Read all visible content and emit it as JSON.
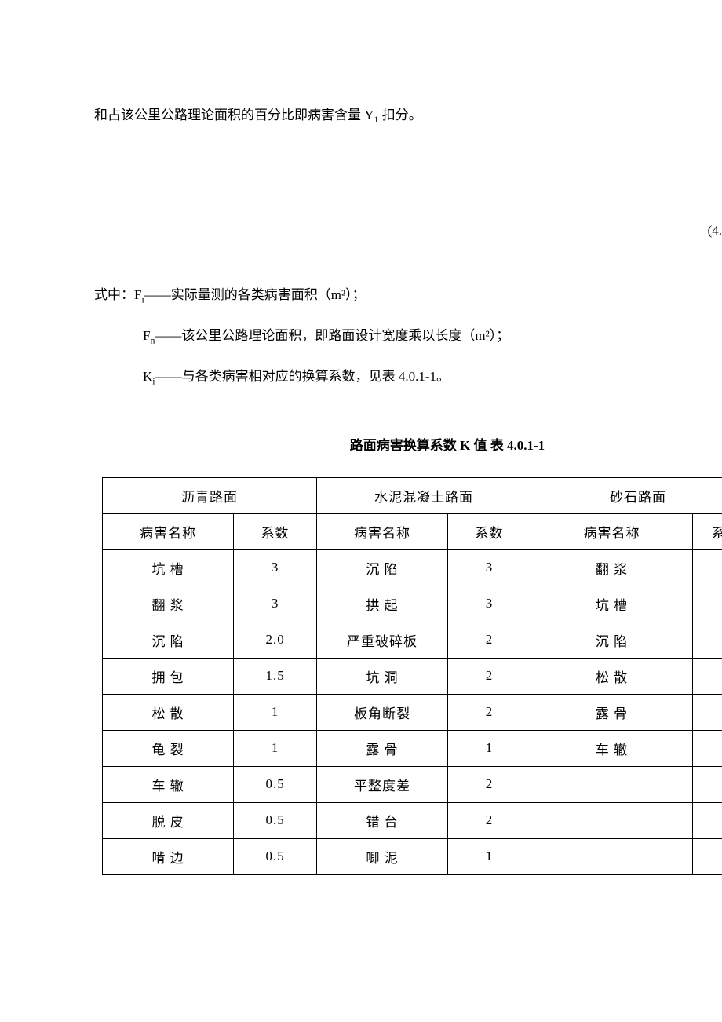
{
  "intro_paragraph": "和占该公里公路理论面积的百分比即病害含量 Y₁ 扣分。",
  "eq_number": "(4.",
  "definition_prefix": "式中：",
  "definitions": [
    {
      "symbol": "F",
      "sub": "i",
      "text": "——实际量测的各类病害面积（m²）；"
    },
    {
      "symbol": "F",
      "sub": "n",
      "text": "——该公里公路理论面积，即路面设计宽度乘以长度（m²）；"
    },
    {
      "symbol": "K",
      "sub": "i",
      "text": "——与各类病害相对应的换算系数，见表 4.0.1-1。"
    }
  ],
  "table_caption": "路面病害换算系数 K 值  表 4.0.1-1",
  "table": {
    "header_groups": [
      {
        "label": "沥青路面"
      },
      {
        "label": "水泥混凝土路面"
      },
      {
        "label": "砂石路面"
      }
    ],
    "sub_headers": {
      "name": "病害名称",
      "coef": "系数",
      "coef_partial": "系"
    },
    "rows": [
      {
        "c1_name": "坑 槽",
        "c1_coef": "3",
        "c2_name": "沉 陷",
        "c2_coef": "3",
        "c3_name": "翻 浆",
        "c3_coef": ""
      },
      {
        "c1_name": "翻 浆",
        "c1_coef": "3",
        "c2_name": "拱 起",
        "c2_coef": "3",
        "c3_name": "坑 槽",
        "c3_coef": ""
      },
      {
        "c1_name": "沉 陷",
        "c1_coef": "2.0",
        "c2_name": "严重破碎板",
        "c2_coef": "2",
        "c3_name": "沉 陷",
        "c3_coef": ""
      },
      {
        "c1_name": "拥 包",
        "c1_coef": "1.5",
        "c2_name": "坑 洞",
        "c2_coef": "2",
        "c3_name": "松 散",
        "c3_coef": ""
      },
      {
        "c1_name": "松 散",
        "c1_coef": "1",
        "c2_name": "板角断裂",
        "c2_coef": "2",
        "c3_name": "露 骨",
        "c3_coef": ""
      },
      {
        "c1_name": "龟 裂",
        "c1_coef": "1",
        "c2_name": "露 骨",
        "c2_coef": "1",
        "c3_name": "车 辙",
        "c3_coef": ""
      },
      {
        "c1_name": "车 辙",
        "c1_coef": "0.5",
        "c2_name": "平整度差",
        "c2_coef": "2",
        "c3_name": "",
        "c3_coef": ""
      },
      {
        "c1_name": "脱 皮",
        "c1_coef": "0.5",
        "c2_name": "错 台",
        "c2_coef": "2",
        "c3_name": "",
        "c3_coef": ""
      },
      {
        "c1_name": "啃 边",
        "c1_coef": "0.5",
        "c2_name": "唧 泥",
        "c2_coef": "1",
        "c3_name": "",
        "c3_coef": ""
      }
    ]
  },
  "colors": {
    "background": "#ffffff",
    "text": "#000000",
    "border": "#000000"
  }
}
